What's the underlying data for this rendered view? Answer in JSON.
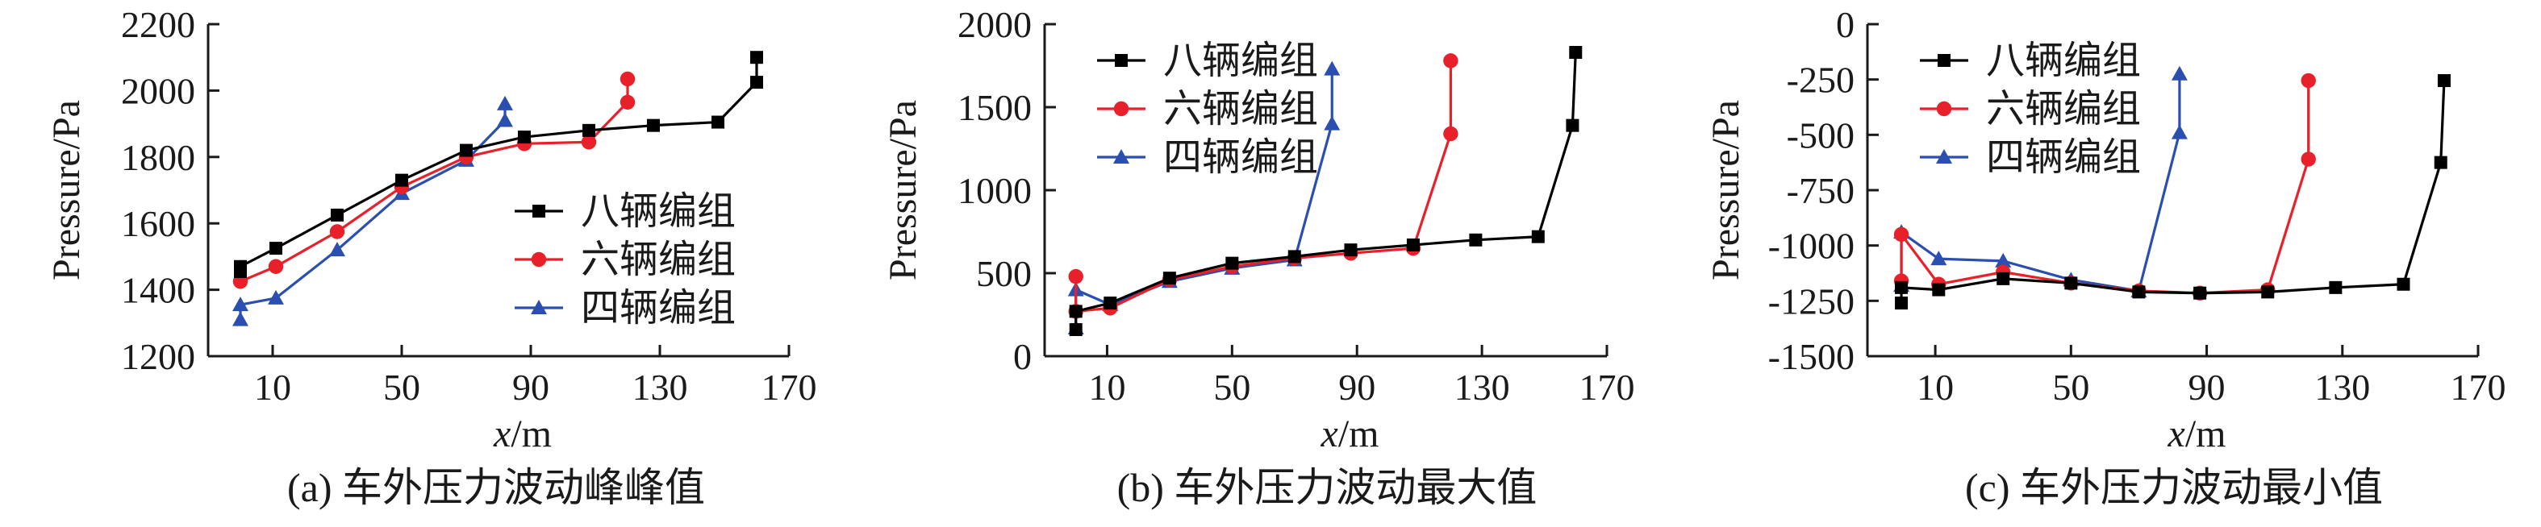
{
  "chart_data": [
    {
      "type": "line",
      "caption": "(a) 车外压力波动峰峰值",
      "xlabel_var": "x",
      "xlabel_unit": "/m",
      "ylabel": "Pressure/Pa",
      "xlim": [
        -10,
        170
      ],
      "ylim": [
        1200,
        2200
      ],
      "xticks": [
        10,
        50,
        90,
        130,
        170
      ],
      "yticks": [
        1200,
        1400,
        1600,
        1800,
        2000,
        2200
      ],
      "legend_position": "lower-right",
      "series": [
        {
          "name": "八辆编组",
          "color": "#000000",
          "marker": "square",
          "x": [
            0,
            0,
            11,
            30,
            50,
            70,
            88,
            108,
            128,
            148,
            160,
            160
          ],
          "y": [
            1455,
            1470,
            1525,
            1625,
            1730,
            1820,
            1860,
            1880,
            1895,
            1905,
            2025,
            2100
          ]
        },
        {
          "name": "六辆编组",
          "color": "#e8202a",
          "marker": "circle",
          "x": [
            0,
            11,
            30,
            50,
            70,
            88,
            108,
            120,
            120
          ],
          "y": [
            1425,
            1470,
            1575,
            1710,
            1800,
            1840,
            1845,
            1965,
            2035
          ]
        },
        {
          "name": "四辆编组",
          "color": "#2a4fb0",
          "marker": "triangle",
          "x": [
            0,
            0,
            11,
            30,
            50,
            70,
            82,
            82
          ],
          "y": [
            1310,
            1355,
            1375,
            1520,
            1690,
            1790,
            1910,
            1960
          ]
        }
      ]
    },
    {
      "type": "line",
      "caption": "(b) 车外压力波动最大值",
      "xlabel_var": "x",
      "xlabel_unit": "/m",
      "ylabel": "Pressure/Pa",
      "xlim": [
        -10,
        170
      ],
      "ylim": [
        0,
        2000
      ],
      "xticks": [
        10,
        50,
        90,
        130,
        170
      ],
      "yticks": [
        0,
        500,
        1000,
        1500,
        2000
      ],
      "legend_position": "top-left",
      "series": [
        {
          "name": "八辆编组",
          "color": "#000000",
          "marker": "square",
          "x": [
            0,
            0,
            11,
            30,
            50,
            70,
            88,
            108,
            128,
            148,
            159,
            160
          ],
          "y": [
            160,
            270,
            320,
            470,
            560,
            600,
            640,
            670,
            700,
            720,
            1390,
            1830
          ]
        },
        {
          "name": "六辆编组",
          "color": "#e8202a",
          "marker": "circle",
          "x": [
            0,
            0,
            11,
            30,
            50,
            70,
            88,
            108,
            120,
            120
          ],
          "y": [
            480,
            270,
            290,
            460,
            540,
            590,
            620,
            650,
            1340,
            1780
          ]
        },
        {
          "name": "四辆编组",
          "color": "#2a4fb0",
          "marker": "triangle",
          "x": [
            0,
            0,
            11,
            30,
            50,
            70,
            82,
            82
          ],
          "y": [
            170,
            400,
            310,
            450,
            530,
            580,
            1400,
            1730
          ]
        }
      ]
    },
    {
      "type": "line",
      "caption": "(c) 车外压力波动最小值",
      "xlabel_var": "x",
      "xlabel_unit": "/m",
      "ylabel": "Pressure/Pa",
      "xlim": [
        -10,
        170
      ],
      "ylim": [
        -1500,
        0
      ],
      "xticks": [
        10,
        50,
        90,
        130,
        170
      ],
      "yticks": [
        -1500,
        -1250,
        -1000,
        -750,
        -500,
        -250,
        0
      ],
      "legend_position": "top-left",
      "series": [
        {
          "name": "八辆编组",
          "color": "#000000",
          "marker": "square",
          "x": [
            0,
            0,
            11,
            30,
            50,
            70,
            88,
            108,
            128,
            148,
            159,
            160
          ],
          "y": [
            -1260,
            -1190,
            -1200,
            -1150,
            -1170,
            -1210,
            -1215,
            -1210,
            -1190,
            -1175,
            -625,
            -255
          ]
        },
        {
          "name": "六辆编组",
          "color": "#e8202a",
          "marker": "circle",
          "x": [
            0,
            0,
            11,
            30,
            50,
            70,
            88,
            108,
            120,
            120
          ],
          "y": [
            -1160,
            -950,
            -1175,
            -1120,
            -1170,
            -1205,
            -1215,
            -1200,
            -610,
            -255
          ]
        },
        {
          "name": "四辆编组",
          "color": "#2a4fb0",
          "marker": "triangle",
          "x": [
            0,
            0,
            11,
            30,
            50,
            70,
            82,
            82
          ],
          "y": [
            -1180,
            -940,
            -1060,
            -1070,
            -1155,
            -1205,
            -490,
            -225
          ]
        }
      ]
    }
  ]
}
